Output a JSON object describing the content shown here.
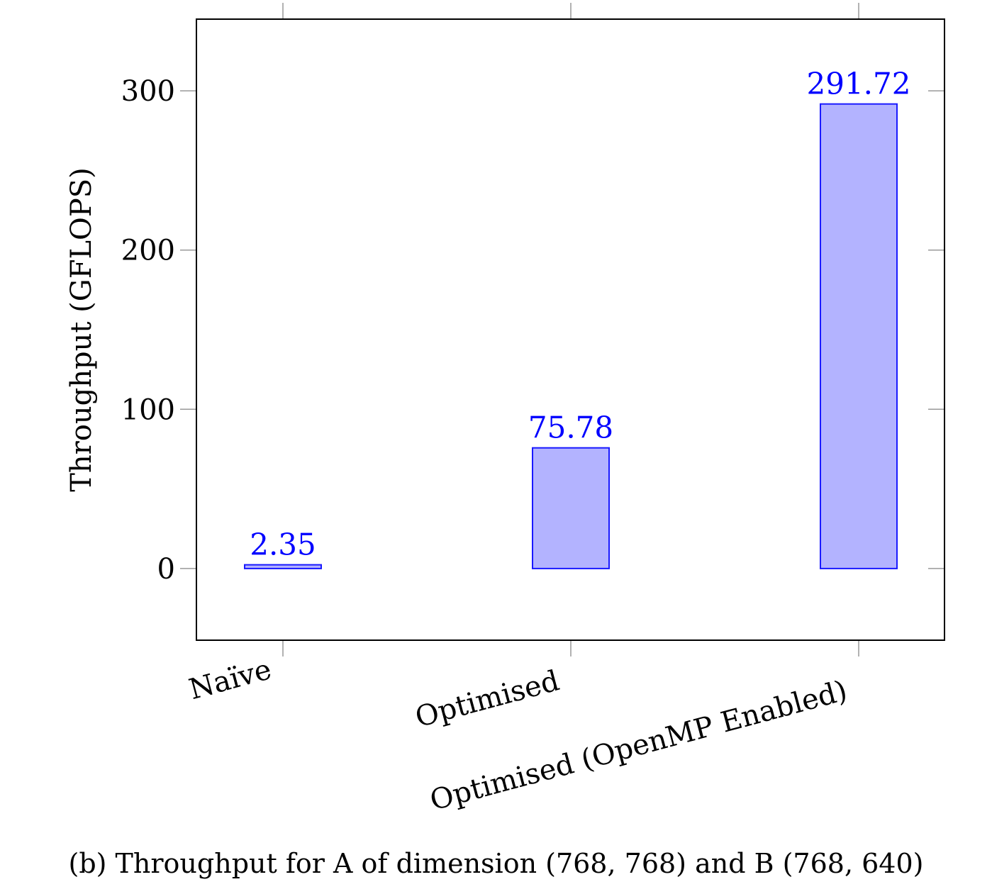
{
  "chart_data": {
    "type": "bar",
    "categories": [
      "Naïve",
      "Optimised",
      "Optimised (OpenMP Enabled)"
    ],
    "values": [
      2.35,
      75.78,
      291.72
    ],
    "value_labels": [
      "2.35",
      "75.78",
      "291.72"
    ],
    "ylabel": "Throughput (GFLOPS)",
    "xlabel": "",
    "ylim": [
      -45,
      345
    ],
    "yticks": [
      0,
      100,
      200,
      300
    ],
    "grid": false,
    "bar_fill": "#b3b3ff",
    "bar_stroke": "#1a1aff",
    "label_color": "#0000ff",
    "caption": "(b) Throughput for A of dimension (768, 768) and B (768, 640)"
  }
}
